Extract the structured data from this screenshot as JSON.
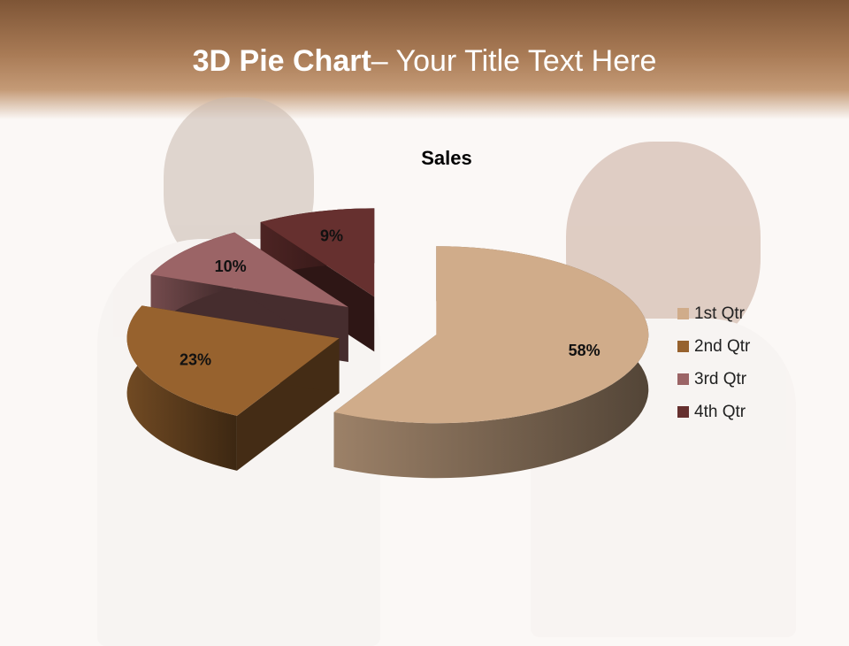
{
  "slide": {
    "title_bold": "3D Pie Chart",
    "title_rest": "– Your Title Text Here"
  },
  "chart_data": {
    "type": "pie",
    "variant": "3d-exploded",
    "title": "Sales",
    "categories": [
      "1st Qtr",
      "2nd Qtr",
      "3rd Qtr",
      "4th Qtr"
    ],
    "values": [
      58,
      23,
      10,
      9
    ],
    "data_labels": [
      "58%",
      "23%",
      "10%",
      "9%"
    ],
    "colors": [
      "#D0AC8A",
      "#97622E",
      "#9B6466",
      "#66302F"
    ],
    "legend_position": "right"
  }
}
